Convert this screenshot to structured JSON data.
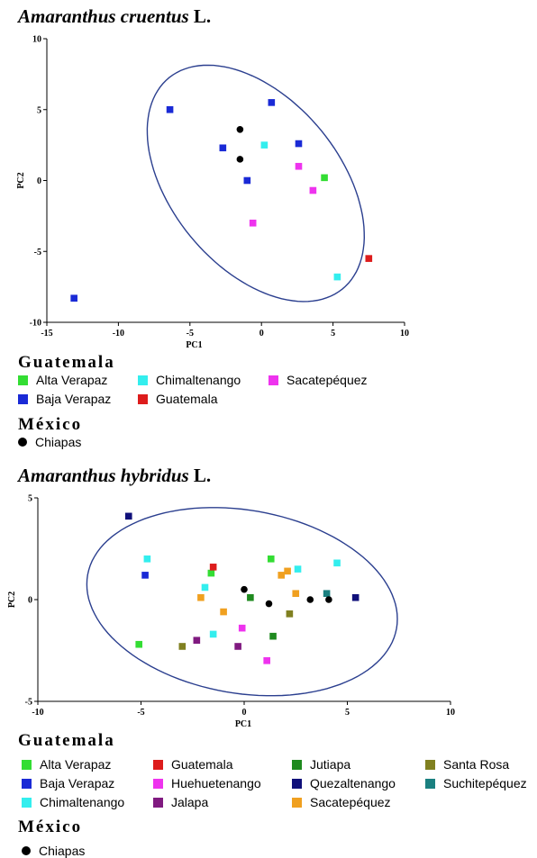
{
  "chart_data": [
    {
      "type": "scatter",
      "title": {
        "species": "Amaranthus cruentus",
        "author": "L."
      },
      "xlabel": "PC1",
      "ylabel": "PC2",
      "xlim": [
        -15,
        10
      ],
      "ylim": [
        -10,
        10
      ],
      "xticks": [
        -15,
        -10,
        -5,
        0,
        5,
        10
      ],
      "yticks": [
        -10,
        -5,
        0,
        5,
        10
      ],
      "grid": false,
      "confidence_ellipse": true,
      "legend": [
        {
          "heading": "Guatemala",
          "items": [
            {
              "name": "Alta Verapaz",
              "color": "#33dd33",
              "marker": "square"
            },
            {
              "name": "Chimaltenango",
              "color": "#33eeee",
              "marker": "square"
            },
            {
              "name": "Sacatepéquez",
              "color": "#ee33ee",
              "marker": "square"
            },
            {
              "name": "Baja Verapaz",
              "color": "#1a2ad6",
              "marker": "square"
            },
            {
              "name": "Guatemala",
              "color": "#dd1c1c",
              "marker": "square"
            }
          ]
        },
        {
          "heading": "México",
          "items": [
            {
              "name": "Chiapas",
              "color": "#000000",
              "marker": "circle"
            }
          ]
        }
      ],
      "series": [
        {
          "name": "Alta Verapaz",
          "color": "#33dd33",
          "marker": "square",
          "points": [
            [
              4.4,
              0.2
            ]
          ]
        },
        {
          "name": "Baja Verapaz",
          "color": "#1a2ad6",
          "marker": "square",
          "points": [
            [
              -6.4,
              5.0
            ],
            [
              0.7,
              5.5
            ],
            [
              -2.7,
              2.3
            ],
            [
              2.6,
              2.6
            ],
            [
              -1.0,
              0.0
            ],
            [
              -13.1,
              -8.3
            ]
          ]
        },
        {
          "name": "Chimaltenango",
          "color": "#33eeee",
          "marker": "square",
          "points": [
            [
              0.2,
              2.5
            ],
            [
              5.3,
              -6.8
            ]
          ]
        },
        {
          "name": "Sacatepéquez",
          "color": "#ee33ee",
          "marker": "square",
          "points": [
            [
              2.6,
              1.0
            ],
            [
              3.6,
              -0.7
            ],
            [
              -0.6,
              -3.0
            ]
          ]
        },
        {
          "name": "Guatemala",
          "color": "#dd1c1c",
          "marker": "square",
          "points": [
            [
              7.5,
              -5.5
            ]
          ]
        },
        {
          "name": "Chiapas",
          "color": "#000000",
          "marker": "circle",
          "points": [
            [
              -1.5,
              3.6
            ],
            [
              -1.5,
              1.5
            ]
          ]
        }
      ],
      "ellipse": {
        "cx": -0.4,
        "cy": -0.2,
        "rx": 9.6,
        "ry": 5.9,
        "angle_deg": -51
      }
    },
    {
      "type": "scatter",
      "title": {
        "species": "Amaranthus hybridus",
        "author": "L."
      },
      "xlabel": "PC1",
      "ylabel": "PC2",
      "xlim": [
        -10,
        10
      ],
      "ylim": [
        -5,
        5
      ],
      "xticks": [
        -10,
        -5,
        0,
        5,
        10
      ],
      "yticks": [
        -5,
        0,
        5
      ],
      "grid": false,
      "confidence_ellipse": true,
      "legend": [
        {
          "heading": "Guatemala",
          "items": [
            {
              "name": "Alta Verapaz",
              "color": "#33dd33",
              "marker": "square"
            },
            {
              "name": "Guatemala",
              "color": "#dd1c1c",
              "marker": "square"
            },
            {
              "name": "Jutiapa",
              "color": "#1f8a1f",
              "marker": "square"
            },
            {
              "name": "Santa Rosa",
              "color": "#808020",
              "marker": "square"
            },
            {
              "name": "Baja Verapaz",
              "color": "#1a2ad6",
              "marker": "square"
            },
            {
              "name": "Huehuetenango",
              "color": "#ee33ee",
              "marker": "square"
            },
            {
              "name": "Quezaltenango",
              "color": "#10107a",
              "marker": "square"
            },
            {
              "name": "Suchitepéquez",
              "color": "#1a8080",
              "marker": "square"
            },
            {
              "name": "Chimaltenango",
              "color": "#33eeee",
              "marker": "square"
            },
            {
              "name": "Jalapa",
              "color": "#801a80",
              "marker": "square"
            },
            {
              "name": "Sacatepéquez",
              "color": "#f0a020",
              "marker": "square"
            }
          ]
        },
        {
          "heading": "México",
          "items": [
            {
              "name": "Chiapas",
              "color": "#000000",
              "marker": "circle"
            }
          ]
        }
      ],
      "series": [
        {
          "name": "Alta Verapaz",
          "color": "#33dd33",
          "marker": "square",
          "points": [
            [
              -1.6,
              1.3
            ],
            [
              1.3,
              2.0
            ],
            [
              -5.1,
              -2.2
            ]
          ]
        },
        {
          "name": "Baja Verapaz",
          "color": "#1a2ad6",
          "marker": "square",
          "points": [
            [
              -4.8,
              1.2
            ]
          ]
        },
        {
          "name": "Chimaltenango",
          "color": "#33eeee",
          "marker": "square",
          "points": [
            [
              -4.7,
              2.0
            ],
            [
              -1.9,
              0.6
            ],
            [
              2.6,
              1.5
            ],
            [
              4.5,
              1.8
            ],
            [
              -1.5,
              -1.7
            ]
          ]
        },
        {
          "name": "Guatemala",
          "color": "#dd1c1c",
          "marker": "square",
          "points": [
            [
              -1.5,
              1.6
            ]
          ]
        },
        {
          "name": "Huehuetenango",
          "color": "#ee33ee",
          "marker": "square",
          "points": [
            [
              -0.1,
              -1.4
            ],
            [
              1.1,
              -3.0
            ]
          ]
        },
        {
          "name": "Jalapa",
          "color": "#801a80",
          "marker": "square",
          "points": [
            [
              -2.3,
              -2.0
            ],
            [
              -0.3,
              -2.3
            ]
          ]
        },
        {
          "name": "Jutiapa",
          "color": "#1f8a1f",
          "marker": "square",
          "points": [
            [
              0.3,
              0.1
            ],
            [
              1.4,
              -1.8
            ]
          ]
        },
        {
          "name": "Quezaltenango",
          "color": "#10107a",
          "marker": "square",
          "points": [
            [
              -5.6,
              4.1
            ],
            [
              5.4,
              0.1
            ]
          ]
        },
        {
          "name": "Sacatepéquez",
          "color": "#f0a020",
          "marker": "square",
          "points": [
            [
              -2.1,
              0.1
            ],
            [
              -1.0,
              -0.6
            ],
            [
              1.8,
              1.2
            ],
            [
              2.1,
              1.4
            ],
            [
              2.5,
              0.3
            ]
          ]
        },
        {
          "name": "Santa Rosa",
          "color": "#808020",
          "marker": "square",
          "points": [
            [
              -3.0,
              -2.3
            ],
            [
              2.2,
              -0.7
            ]
          ]
        },
        {
          "name": "Suchitepéquez",
          "color": "#1a8080",
          "marker": "square",
          "points": [
            [
              4.0,
              0.3
            ]
          ]
        },
        {
          "name": "Chiapas",
          "color": "#000000",
          "marker": "circle",
          "points": [
            [
              0.0,
              0.5
            ],
            [
              1.2,
              -0.2
            ],
            [
              3.2,
              0.0
            ],
            [
              4.1,
              0.0
            ]
          ]
        }
      ],
      "ellipse": {
        "cx": -0.1,
        "cy": -0.1,
        "rx": 7.6,
        "ry": 4.5,
        "angle_deg": -10
      }
    }
  ]
}
